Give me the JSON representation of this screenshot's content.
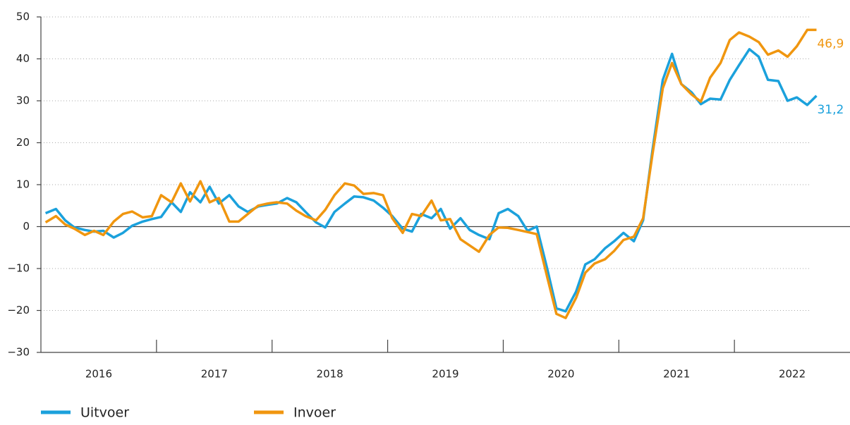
{
  "chart_data": {
    "type": "line",
    "x": [
      2016.04,
      2016.13,
      2016.21,
      2016.29,
      2016.38,
      2016.46,
      2016.54,
      2016.63,
      2016.71,
      2016.79,
      2016.88,
      2016.96,
      2017.04,
      2017.13,
      2017.21,
      2017.29,
      2017.38,
      2017.46,
      2017.54,
      2017.63,
      2017.71,
      2017.79,
      2017.88,
      2017.96,
      2018.04,
      2018.13,
      2018.21,
      2018.29,
      2018.38,
      2018.46,
      2018.54,
      2018.63,
      2018.71,
      2018.79,
      2018.88,
      2018.96,
      2019.04,
      2019.13,
      2019.21,
      2019.29,
      2019.38,
      2019.46,
      2019.54,
      2019.63,
      2019.71,
      2019.79,
      2019.88,
      2019.96,
      2020.04,
      2020.13,
      2020.21,
      2020.29,
      2020.38,
      2020.46,
      2020.54,
      2020.63,
      2020.71,
      2020.79,
      2020.88,
      2020.96,
      2021.04,
      2021.13,
      2021.21,
      2021.29,
      2021.38,
      2021.46,
      2021.54,
      2021.63,
      2021.71,
      2021.79,
      2021.88,
      2021.96,
      2022.04,
      2022.13,
      2022.21,
      2022.29,
      2022.38,
      2022.46,
      2022.54,
      2022.63,
      2022.71
    ],
    "series": [
      {
        "name": "Uitvoer",
        "color": "#1ba1dc",
        "last_label": "31,2",
        "values": [
          3.2,
          4.2,
          1.5,
          -0.2,
          -0.8,
          -1.2,
          -1.0,
          -2.6,
          -1.5,
          0.2,
          1.2,
          1.8,
          2.3,
          5.8,
          3.5,
          8.2,
          5.8,
          9.5,
          5.5,
          7.5,
          4.8,
          3.5,
          4.8,
          5.2,
          5.5,
          6.8,
          5.8,
          3.5,
          1.0,
          -0.2,
          3.5,
          5.5,
          7.2,
          7.0,
          6.2,
          4.5,
          2.5,
          -0.5,
          -1.2,
          3.0,
          2.0,
          4.2,
          -0.5,
          2.0,
          -0.8,
          -2.0,
          -3.0,
          3.2,
          4.2,
          2.5,
          -1.0,
          0.0,
          -10.0,
          -19.5,
          -20.2,
          -15.5,
          -9.0,
          -7.8,
          -5.2,
          -3.5,
          -1.5,
          -3.5,
          1.5,
          18.0,
          35.0,
          41.2,
          34.0,
          32.0,
          29.2,
          30.5,
          30.3,
          35.0,
          38.5,
          42.3,
          40.5,
          35.0,
          34.7,
          30.0,
          30.8,
          29.0,
          31.2
        ]
      },
      {
        "name": "Invoer",
        "color": "#f0960f",
        "last_label": "46,9",
        "values": [
          1.0,
          2.5,
          0.5,
          -0.5,
          -2.0,
          -1.0,
          -2.0,
          1.2,
          3.0,
          3.6,
          2.2,
          2.5,
          7.5,
          5.8,
          10.3,
          6.0,
          10.8,
          5.8,
          6.8,
          1.2,
          1.2,
          3.0,
          5.0,
          5.5,
          5.8,
          5.5,
          3.8,
          2.5,
          1.5,
          4.0,
          7.5,
          10.3,
          9.8,
          7.8,
          8.0,
          7.5,
          2.0,
          -1.5,
          3.0,
          2.5,
          6.2,
          1.5,
          1.8,
          -3.0,
          -4.5,
          -6.0,
          -2.0,
          -0.2,
          -0.3,
          -0.8,
          -1.3,
          -1.8,
          -12.0,
          -20.8,
          -21.8,
          -17.0,
          -11.0,
          -8.8,
          -7.8,
          -5.8,
          -3.2,
          -2.4,
          2.0,
          17.0,
          33.0,
          39.0,
          34.0,
          31.5,
          29.8,
          35.5,
          39.0,
          44.5,
          46.3,
          45.3,
          44.0,
          41.0,
          42.0,
          40.5,
          43.0,
          46.9,
          46.9
        ]
      }
    ],
    "xlim": [
      2016,
      2023
    ],
    "xticks": [
      {
        "value": 2016.5,
        "label": "2016"
      },
      {
        "value": 2017.5,
        "label": "2017"
      },
      {
        "value": 2018.5,
        "label": "2018"
      },
      {
        "value": 2019.5,
        "label": "2019"
      },
      {
        "value": 2020.5,
        "label": "2020"
      },
      {
        "value": 2021.5,
        "label": "2021"
      },
      {
        "value": 2022.5,
        "label": "2022"
      }
    ],
    "ylim": [
      -30,
      50
    ],
    "yticks": [
      {
        "value": -30,
        "label": "−30"
      },
      {
        "value": -20,
        "label": "−20"
      },
      {
        "value": -10,
        "label": "−10"
      },
      0,
      10,
      20,
      30,
      40,
      50
    ],
    "grid": true,
    "legend": "bottom-left"
  }
}
